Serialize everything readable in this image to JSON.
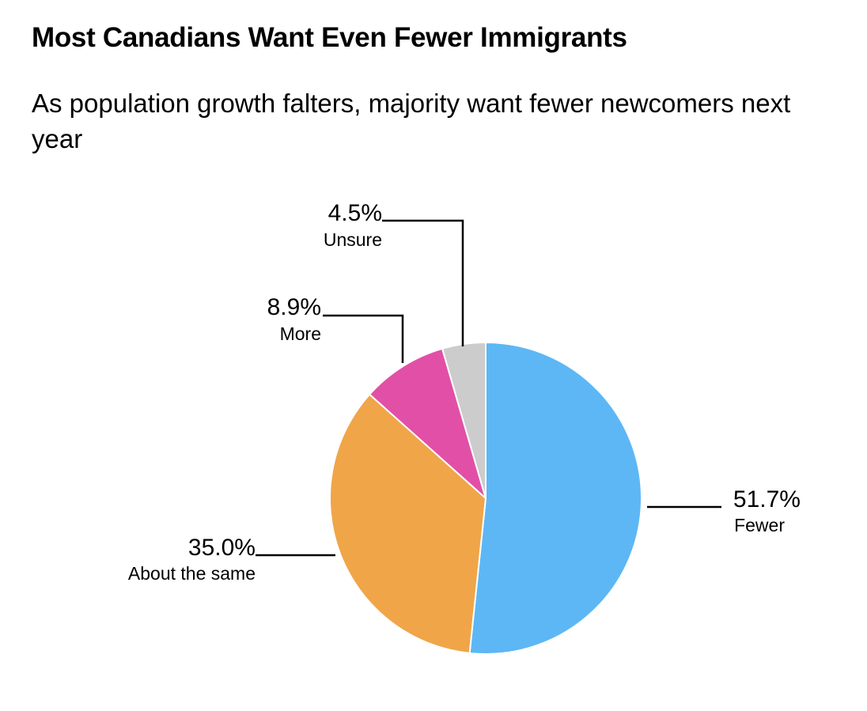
{
  "chart_data": {
    "type": "pie",
    "title": "Most Canadians Want Even Fewer Immigrants",
    "subtitle": "As population growth falters, majority want fewer newcomers next year",
    "unit": "%",
    "slices": [
      {
        "label": "Fewer",
        "value": 51.7,
        "value_label": "51.7%",
        "color": "#5db7f5"
      },
      {
        "label": "About the same",
        "value": 35.0,
        "value_label": "35.0%",
        "color": "#f0a548"
      },
      {
        "label": "More",
        "value": 8.9,
        "value_label": "8.9%",
        "color": "#e150a6"
      },
      {
        "label": "Unsure",
        "value": 4.5,
        "value_label": "4.5%",
        "color": "#cccccc"
      }
    ],
    "start_angle": "12 o'clock",
    "direction": "clockwise",
    "leader_lines": "black",
    "slice_border_color": "#ffffff"
  }
}
